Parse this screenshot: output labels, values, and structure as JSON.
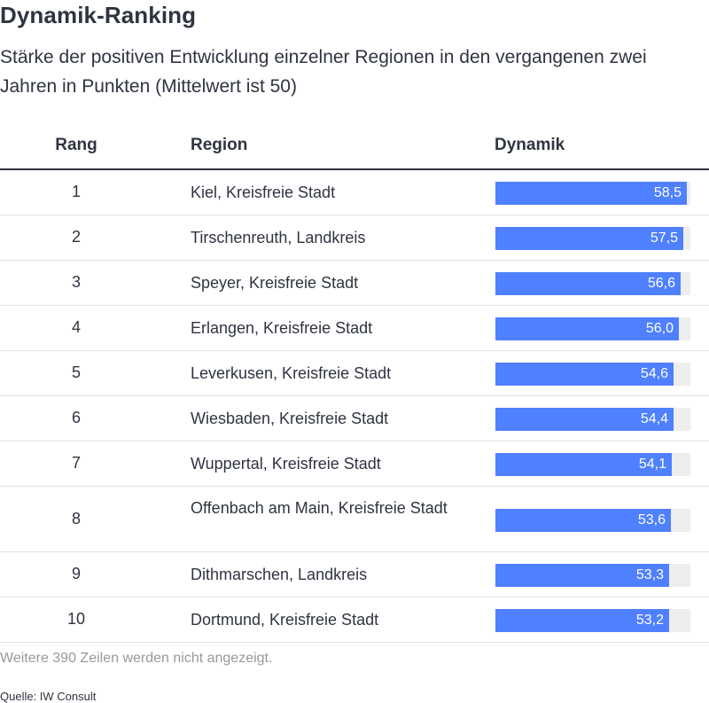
{
  "header": {
    "title": "Dynamik-Ranking",
    "subtitle": "Stärke der positiven Entwicklung einzelner Regionen in den vergangenen zwei Jahren in Punkten (Mittelwert ist 50)"
  },
  "table": {
    "columns": {
      "rank": "Rang",
      "region": "Region",
      "value": "Dynamik"
    }
  },
  "chart_data": {
    "type": "table",
    "title": "Dynamik-Ranking",
    "subtitle": "Stärke der positiven Entwicklung einzelner Regionen in den vergangenen zwei Jahren in Punkten (Mittelwert ist 50)",
    "columns": [
      "Rang",
      "Region",
      "Dynamik"
    ],
    "bar_color": "#4f80ff",
    "bar_track_color": "#eeeeee",
    "rows": [
      {
        "rank": "1",
        "region": "Kiel, Kreisfreie Stadt",
        "value": 58.5,
        "label": "58,5"
      },
      {
        "rank": "2",
        "region": "Tirschenreuth, Landkreis",
        "value": 57.5,
        "label": "57,5"
      },
      {
        "rank": "3",
        "region": "Speyer, Kreisfreie Stadt",
        "value": 56.6,
        "label": "56,6"
      },
      {
        "rank": "4",
        "region": "Erlangen, Kreisfreie Stadt",
        "value": 56.0,
        "label": "56,0"
      },
      {
        "rank": "5",
        "region": "Leverkusen, Kreisfreie Stadt",
        "value": 54.6,
        "label": "54,6"
      },
      {
        "rank": "6",
        "region": "Wiesbaden, Kreisfreie Stadt",
        "value": 54.4,
        "label": "54,4"
      },
      {
        "rank": "7",
        "region": "Wuppertal, Kreisfreie Stadt",
        "value": 54.1,
        "label": "54,1"
      },
      {
        "rank": "8",
        "region": "Offenbach am Main, Kreisfreie Stadt",
        "value": 53.6,
        "label": "53,6"
      },
      {
        "rank": "9",
        "region": "Dithmarschen, Landkreis",
        "value": 53.3,
        "label": "53,3"
      },
      {
        "rank": "10",
        "region": "Dortmund, Kreisfreie Stadt",
        "value": 53.2,
        "label": "53,2"
      }
    ]
  },
  "footer": {
    "more_rows": "Weitere 390 Zeilen werden nicht angezeigt.",
    "source": "Quelle: IW Consult"
  }
}
